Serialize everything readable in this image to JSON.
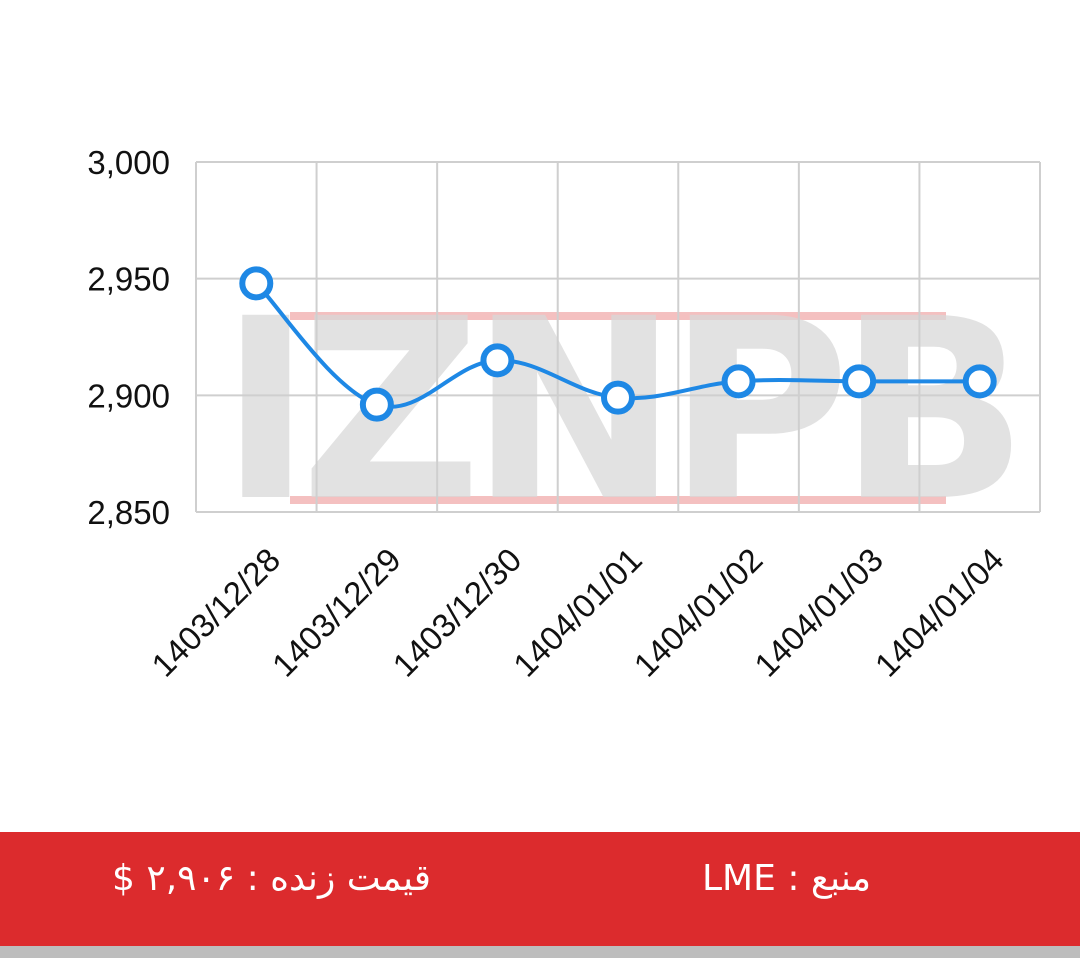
{
  "chart_data": {
    "type": "line",
    "x": [
      "1403/12/28",
      "1403/12/29",
      "1403/12/30",
      "1404/01/01",
      "1404/01/02",
      "1404/01/03",
      "1404/01/04"
    ],
    "series": [
      {
        "values": [
          2948,
          2896,
          2915,
          2899,
          2906,
          2906,
          2906
        ]
      }
    ],
    "ylim": [
      2850,
      3000
    ],
    "yticks": [
      3000,
      2950,
      2900,
      2850
    ],
    "ytick_labels": [
      "3,000",
      "2,950",
      "2,900",
      "2,850"
    ],
    "grid": true,
    "line_color": "#1e88e5",
    "watermark": "IZNPB"
  },
  "footer": {
    "price_label": "قیمت زنده : ۲,۹۰۶ $",
    "source_label": "منبع : LME",
    "background_color": "#dc2b2d"
  }
}
